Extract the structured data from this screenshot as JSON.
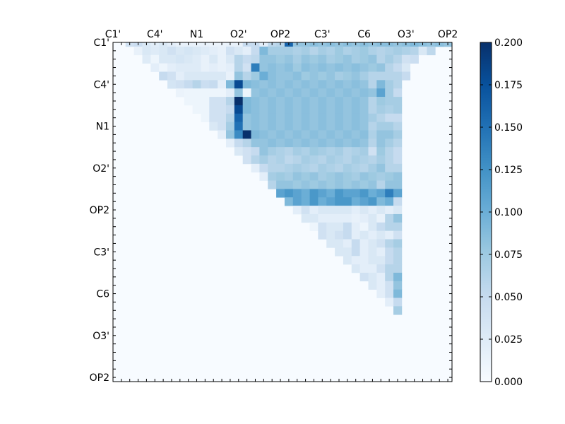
{
  "chart_data": {
    "type": "heatmap",
    "title": "",
    "xlabel": "",
    "ylabel": "",
    "atom_labels": [
      "C1'",
      "C4'",
      "N1",
      "O2'",
      "OP2",
      "C3'",
      "C6",
      "O3'",
      "OP2"
    ],
    "size": 41,
    "value_range": [
      0.0,
      0.2
    ],
    "colormap": "Blues",
    "colorbar": {
      "ticks": [
        0.0,
        0.025,
        0.05,
        0.075,
        0.1,
        0.125,
        0.15,
        0.175,
        0.2
      ],
      "tick_labels": [
        "0.000",
        "0.025",
        "0.050",
        "0.075",
        "0.100",
        "0.125",
        "0.150",
        "0.175",
        "0.200"
      ]
    },
    "row_profiles": [
      [
        0.04,
        0.045,
        0.03,
        0.022,
        0.03,
        0.02,
        0.015,
        0.015,
        0.015,
        0.015,
        0.012,
        0.012,
        0.015,
        0.015,
        0.05,
        0.05,
        0.02,
        0.055,
        0.06,
        0.16,
        0.08,
        0.08,
        0.085,
        0.08,
        0.085,
        0.08,
        0.085,
        0.08,
        0.085,
        0.08,
        0.085,
        0.085,
        0.08,
        0.085,
        0.09,
        0.085,
        0.08,
        0.085,
        0.08
      ],
      [
        0.015,
        0.03,
        0.025,
        0.03,
        0.04,
        0.03,
        0.035,
        0.03,
        0.025,
        0.02,
        0.015,
        0.04,
        0.03,
        0.02,
        0.05,
        0.09,
        0.07,
        0.07,
        0.07,
        0.065,
        0.07,
        0.06,
        0.07,
        0.065,
        0.075,
        0.065,
        0.07,
        0.075,
        0.065,
        0.06,
        0.065,
        0.07,
        0.065,
        0.06,
        0.03,
        0.055
      ],
      [
        0.025,
        0.01,
        0.03,
        0.03,
        0.035,
        0.03,
        0.025,
        0.015,
        0.03,
        0.015,
        0.03,
        0.06,
        0.05,
        0.055,
        0.08,
        0.08,
        0.075,
        0.08,
        0.07,
        0.08,
        0.075,
        0.08,
        0.07,
        0.075,
        0.08,
        0.07,
        0.075,
        0.08,
        0.06,
        0.07,
        0.06,
        0.04,
        0.045
      ],
      [
        0.02,
        0.01,
        0.02,
        0.025,
        0.025,
        0.025,
        0.015,
        0.02,
        0.015,
        0.02,
        0.06,
        0.04,
        0.14,
        0.08,
        0.085,
        0.08,
        0.085,
        0.075,
        0.085,
        0.08,
        0.085,
        0.08,
        0.085,
        0.08,
        0.085,
        0.08,
        0.075,
        0.08,
        0.06,
        0.05,
        0.03
      ],
      [
        0.05,
        0.04,
        0.02,
        0.03,
        0.03,
        0.03,
        0.03,
        0.03,
        0.015,
        0.08,
        0.06,
        0.075,
        0.1,
        0.085,
        0.08,
        0.08,
        0.085,
        0.075,
        0.08,
        0.075,
        0.08,
        0.07,
        0.075,
        0.08,
        0.07,
        0.06,
        0.06,
        0.06,
        0.06,
        0.05
      ],
      [
        0.035,
        0.04,
        0.05,
        0.06,
        0.045,
        0.05,
        0.02,
        0.09,
        0.18,
        0.09,
        0.085,
        0.08,
        0.085,
        0.08,
        0.085,
        0.08,
        0.085,
        0.08,
        0.085,
        0.08,
        0.085,
        0.08,
        0.085,
        0.08,
        0.06,
        0.09,
        0.07,
        0.06
      ],
      [
        0.012,
        0.01,
        0.01,
        0.01,
        0.01,
        0.01,
        0.02,
        0.08,
        0.01,
        0.08,
        0.085,
        0.08,
        0.085,
        0.08,
        0.085,
        0.08,
        0.085,
        0.08,
        0.085,
        0.08,
        0.085,
        0.08,
        0.085,
        0.08,
        0.11,
        0.07,
        0.05
      ],
      [
        0.01,
        0.01,
        0.01,
        0.04,
        0.04,
        0.06,
        0.2,
        0.09,
        0.085,
        0.08,
        0.085,
        0.08,
        0.085,
        0.08,
        0.085,
        0.08,
        0.085,
        0.08,
        0.085,
        0.08,
        0.085,
        0.08,
        0.06,
        0.075,
        0.07,
        0.07
      ],
      [
        0.01,
        0.01,
        0.04,
        0.04,
        0.05,
        0.18,
        0.09,
        0.085,
        0.08,
        0.085,
        0.08,
        0.085,
        0.08,
        0.085,
        0.08,
        0.085,
        0.08,
        0.085,
        0.08,
        0.085,
        0.08,
        0.06,
        0.07,
        0.065,
        0.07
      ],
      [
        0.01,
        0.04,
        0.04,
        0.06,
        0.16,
        0.08,
        0.085,
        0.08,
        0.085,
        0.08,
        0.085,
        0.08,
        0.085,
        0.08,
        0.085,
        0.08,
        0.085,
        0.08,
        0.085,
        0.08,
        0.07,
        0.06,
        0.05,
        0.05
      ],
      [
        0.03,
        0.04,
        0.07,
        0.15,
        0.08,
        0.085,
        0.08,
        0.085,
        0.08,
        0.085,
        0.08,
        0.085,
        0.08,
        0.085,
        0.08,
        0.085,
        0.08,
        0.085,
        0.08,
        0.06,
        0.07,
        0.07,
        0.06
      ],
      [
        0.02,
        0.08,
        0.13,
        0.2,
        0.09,
        0.085,
        0.08,
        0.085,
        0.08,
        0.085,
        0.08,
        0.085,
        0.08,
        0.085,
        0.08,
        0.085,
        0.08,
        0.085,
        0.065,
        0.08,
        0.08,
        0.07
      ],
      [
        0.02,
        0.05,
        0.06,
        0.08,
        0.08,
        0.085,
        0.08,
        0.085,
        0.08,
        0.085,
        0.08,
        0.085,
        0.08,
        0.085,
        0.08,
        0.085,
        0.08,
        0.06,
        0.08,
        0.07,
        0.06
      ],
      [
        0.03,
        0.04,
        0.05,
        0.08,
        0.07,
        0.065,
        0.06,
        0.07,
        0.065,
        0.075,
        0.07,
        0.065,
        0.07,
        0.06,
        0.065,
        0.07,
        0.04,
        0.075,
        0.06,
        0.05
      ],
      [
        0.04,
        0.06,
        0.07,
        0.06,
        0.065,
        0.055,
        0.06,
        0.07,
        0.065,
        0.06,
        0.07,
        0.065,
        0.06,
        0.07,
        0.065,
        0.06,
        0.07,
        0.06,
        0.05
      ],
      [
        0.02,
        0.05,
        0.06,
        0.06,
        0.065,
        0.07,
        0.065,
        0.06,
        0.07,
        0.065,
        0.06,
        0.07,
        0.065,
        0.06,
        0.07,
        0.08,
        0.06,
        0.06
      ],
      [
        0.02,
        0.07,
        0.075,
        0.07,
        0.08,
        0.075,
        0.08,
        0.07,
        0.075,
        0.08,
        0.075,
        0.07,
        0.08,
        0.075,
        0.07,
        0.075,
        0.08
      ],
      [
        0.06,
        0.08,
        0.08,
        0.075,
        0.08,
        0.075,
        0.08,
        0.075,
        0.08,
        0.075,
        0.08,
        0.075,
        0.08,
        0.06,
        0.08,
        0.08
      ],
      [
        0.11,
        0.12,
        0.11,
        0.1,
        0.12,
        0.11,
        0.1,
        0.12,
        0.11,
        0.11,
        0.12,
        0.1,
        0.11,
        0.14,
        0.11
      ],
      [
        0.09,
        0.11,
        0.1,
        0.12,
        0.1,
        0.11,
        0.12,
        0.12,
        0.1,
        0.11,
        0.12,
        0.09,
        0.1,
        0.05
      ],
      [
        0.02,
        0.04,
        0.02,
        0.03,
        0.03,
        0.03,
        0.03,
        0.02,
        0.03,
        0.02,
        0.03,
        0.02,
        0.03
      ],
      [
        0.03,
        0.03,
        0.02,
        0.02,
        0.02,
        0.02,
        0.015,
        0.02,
        0.03,
        0.015,
        0.06,
        0.08
      ],
      [
        0.01,
        0.04,
        0.03,
        0.03,
        0.05,
        0.02,
        0.01,
        0.03,
        0.05,
        0.06,
        0.06
      ],
      [
        0.04,
        0.03,
        0.04,
        0.05,
        0.02,
        0.03,
        0.02,
        0.03,
        0.02,
        0.04
      ],
      [
        0.03,
        0.03,
        0.02,
        0.05,
        0.02,
        0.03,
        0.04,
        0.06,
        0.07
      ],
      [
        0.03,
        0.03,
        0.05,
        0.02,
        0.03,
        0.02,
        0.05,
        0.06
      ],
      [
        0.03,
        0.02,
        0.02,
        0.03,
        0.03,
        0.05,
        0.06
      ],
      [
        0.03,
        0.02,
        0.02,
        0.04,
        0.06,
        0.06
      ],
      [
        0.04,
        0.03,
        0.02,
        0.06,
        0.09
      ],
      [
        0.03,
        0.02,
        0.04,
        0.08
      ],
      [
        0.02,
        0.04,
        0.09
      ],
      [
        0.02,
        0.05
      ],
      [
        0.07
      ],
      [],
      [],
      [],
      [],
      [],
      [],
      [],
      []
    ]
  }
}
